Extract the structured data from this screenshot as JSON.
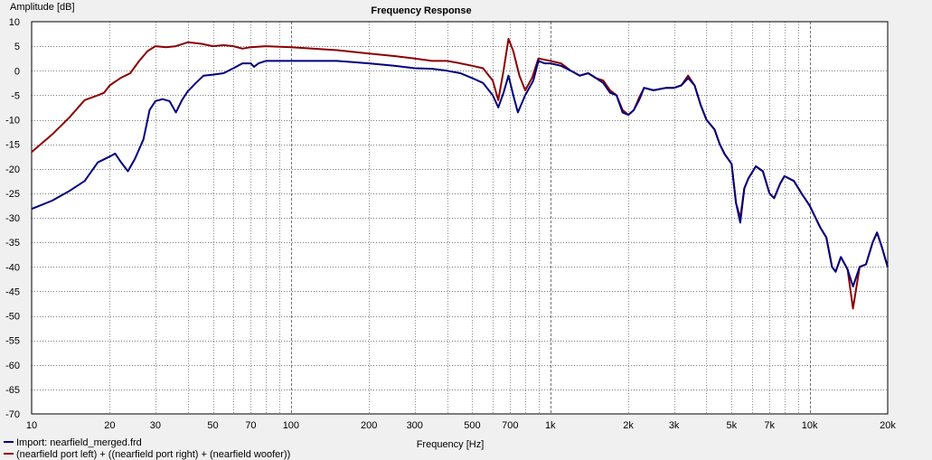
{
  "chart_data": {
    "type": "line",
    "title": "Frequency Response",
    "xlabel": "Frequency [Hz]",
    "ylabel": "Amplitude [dB]",
    "xscale": "log",
    "xlim": [
      10,
      20000
    ],
    "ylim": [
      -70,
      10
    ],
    "grid": true,
    "legend_position": "bottom-left",
    "x_ticks": [
      {
        "v": 10,
        "label": "10"
      },
      {
        "v": 20,
        "label": "20"
      },
      {
        "v": 30,
        "label": "30"
      },
      {
        "v": 50,
        "label": "50"
      },
      {
        "v": 70,
        "label": "70"
      },
      {
        "v": 100,
        "label": "100"
      },
      {
        "v": 200,
        "label": "200"
      },
      {
        "v": 300,
        "label": "300"
      },
      {
        "v": 500,
        "label": "500"
      },
      {
        "v": 700,
        "label": "700"
      },
      {
        "v": 1000,
        "label": "1k"
      },
      {
        "v": 2000,
        "label": "2k"
      },
      {
        "v": 3000,
        "label": "3k"
      },
      {
        "v": 5000,
        "label": "5k"
      },
      {
        "v": 7000,
        "label": "7k"
      },
      {
        "v": 10000,
        "label": "10k"
      },
      {
        "v": 20000,
        "label": "20k"
      }
    ],
    "y_ticks": [
      10,
      5,
      0,
      -5,
      -10,
      -15,
      -20,
      -25,
      -30,
      -35,
      -40,
      -45,
      -50,
      -55,
      -60,
      -65,
      -70
    ],
    "series": [
      {
        "name": "Import: nearfield_merged.frd",
        "color": "#000080",
        "points": [
          [
            10,
            -28.2
          ],
          [
            12,
            -26.5
          ],
          [
            14,
            -24.5
          ],
          [
            16,
            -22.5
          ],
          [
            18,
            -18.7
          ],
          [
            20,
            -17.5
          ],
          [
            21,
            -16.9
          ],
          [
            22,
            -18.5
          ],
          [
            23.5,
            -20.5
          ],
          [
            25,
            -18
          ],
          [
            27,
            -14
          ],
          [
            28.5,
            -8
          ],
          [
            30,
            -6.2
          ],
          [
            32,
            -5.8
          ],
          [
            34,
            -6.2
          ],
          [
            36,
            -8.5
          ],
          [
            38,
            -6
          ],
          [
            40,
            -4.2
          ],
          [
            43,
            -2.5
          ],
          [
            46,
            -1
          ],
          [
            50,
            -0.8
          ],
          [
            55,
            -0.5
          ],
          [
            60,
            0.5
          ],
          [
            65,
            1.5
          ],
          [
            70,
            1.5
          ],
          [
            72,
            0.8
          ],
          [
            75,
            1.5
          ],
          [
            80,
            2
          ],
          [
            90,
            2
          ],
          [
            100,
            2
          ],
          [
            150,
            2
          ],
          [
            200,
            1.5
          ],
          [
            250,
            1
          ],
          [
            300,
            0.5
          ],
          [
            350,
            0.4
          ],
          [
            400,
            0
          ],
          [
            450,
            -0.5
          ],
          [
            500,
            -1.5
          ],
          [
            550,
            -2.5
          ],
          [
            600,
            -5
          ],
          [
            630,
            -7.5
          ],
          [
            660,
            -4.5
          ],
          [
            690,
            -1
          ],
          [
            720,
            -5
          ],
          [
            750,
            -8.5
          ],
          [
            800,
            -5
          ],
          [
            860,
            -2
          ],
          [
            900,
            2
          ],
          [
            950,
            1.5
          ],
          [
            1000,
            1.5
          ],
          [
            1100,
            1
          ],
          [
            1200,
            0
          ],
          [
            1300,
            -1
          ],
          [
            1400,
            -0.5
          ],
          [
            1500,
            -1.5
          ],
          [
            1600,
            -2.5
          ],
          [
            1700,
            -4.5
          ],
          [
            1800,
            -5
          ],
          [
            1900,
            -8.5
          ],
          [
            2000,
            -9
          ],
          [
            2100,
            -8
          ],
          [
            2200,
            -6
          ],
          [
            2300,
            -3.5
          ],
          [
            2500,
            -4
          ],
          [
            2800,
            -3.5
          ],
          [
            3000,
            -3.5
          ],
          [
            3200,
            -3
          ],
          [
            3400,
            -1.5
          ],
          [
            3600,
            -3
          ],
          [
            3800,
            -7
          ],
          [
            4000,
            -10
          ],
          [
            4300,
            -12
          ],
          [
            4500,
            -15
          ],
          [
            4700,
            -17
          ],
          [
            5000,
            -19
          ],
          [
            5200,
            -27
          ],
          [
            5400,
            -31
          ],
          [
            5600,
            -24
          ],
          [
            5800,
            -22
          ],
          [
            6200,
            -19.5
          ],
          [
            6600,
            -20.5
          ],
          [
            7000,
            -25
          ],
          [
            7300,
            -26
          ],
          [
            7700,
            -23
          ],
          [
            8000,
            -21.5
          ],
          [
            8700,
            -22.5
          ],
          [
            9300,
            -25
          ],
          [
            10000,
            -27.5
          ],
          [
            11000,
            -32
          ],
          [
            11600,
            -34
          ],
          [
            12200,
            -40
          ],
          [
            12600,
            -41
          ],
          [
            13200,
            -38
          ],
          [
            14000,
            -40.5
          ],
          [
            14700,
            -44
          ],
          [
            15600,
            -40
          ],
          [
            16500,
            -39.5
          ],
          [
            17500,
            -35
          ],
          [
            18200,
            -33
          ],
          [
            19000,
            -36
          ],
          [
            19600,
            -38.5
          ],
          [
            20000,
            -40
          ]
        ]
      },
      {
        "name": "(nearfield port left) + ((nearfield port right) + (nearfield woofer))",
        "color": "#8b0000",
        "points": [
          [
            10,
            -16.6
          ],
          [
            12,
            -13
          ],
          [
            14,
            -9.5
          ],
          [
            16,
            -6
          ],
          [
            18,
            -5
          ],
          [
            19,
            -4.5
          ],
          [
            20,
            -3
          ],
          [
            22,
            -1.5
          ],
          [
            24,
            -0.5
          ],
          [
            26,
            2
          ],
          [
            28,
            4
          ],
          [
            30,
            5
          ],
          [
            33,
            4.8
          ],
          [
            36,
            5
          ],
          [
            40,
            5.8
          ],
          [
            45,
            5.5
          ],
          [
            50,
            5
          ],
          [
            55,
            5.2
          ],
          [
            60,
            5
          ],
          [
            65,
            4.5
          ],
          [
            70,
            4.8
          ],
          [
            80,
            5
          ],
          [
            100,
            4.8
          ],
          [
            150,
            4.2
          ],
          [
            200,
            3.5
          ],
          [
            250,
            3
          ],
          [
            300,
            2.5
          ],
          [
            350,
            2
          ],
          [
            400,
            2
          ],
          [
            450,
            1.5
          ],
          [
            500,
            1
          ],
          [
            550,
            0.5
          ],
          [
            600,
            -2
          ],
          [
            630,
            -6
          ],
          [
            660,
            0
          ],
          [
            690,
            6.5
          ],
          [
            720,
            4
          ],
          [
            760,
            -1
          ],
          [
            800,
            -4
          ],
          [
            850,
            -1.5
          ],
          [
            900,
            2.5
          ],
          [
            1000,
            2
          ],
          [
            1100,
            1.5
          ],
          [
            1200,
            0
          ],
          [
            1300,
            -1
          ],
          [
            1400,
            -0.5
          ],
          [
            1500,
            -1.5
          ],
          [
            1600,
            -2
          ],
          [
            1700,
            -4
          ],
          [
            1800,
            -5
          ],
          [
            1900,
            -8
          ],
          [
            2000,
            -9
          ],
          [
            2100,
            -8
          ],
          [
            2200,
            -5.5
          ],
          [
            2300,
            -3.5
          ],
          [
            2500,
            -4
          ],
          [
            2800,
            -3.5
          ],
          [
            3000,
            -3.5
          ],
          [
            3200,
            -3
          ],
          [
            3400,
            -1
          ],
          [
            3600,
            -3
          ],
          [
            3800,
            -7
          ],
          [
            4000,
            -10
          ],
          [
            4300,
            -12
          ],
          [
            4500,
            -15
          ],
          [
            4700,
            -17
          ],
          [
            5000,
            -19
          ],
          [
            5200,
            -27
          ],
          [
            5400,
            -30
          ],
          [
            5600,
            -24
          ],
          [
            5800,
            -22
          ],
          [
            6200,
            -19.5
          ],
          [
            6600,
            -20.5
          ],
          [
            7000,
            -25
          ],
          [
            7300,
            -26
          ],
          [
            7700,
            -23
          ],
          [
            8000,
            -21.5
          ],
          [
            8700,
            -22.5
          ],
          [
            9300,
            -25
          ],
          [
            10000,
            -27.5
          ],
          [
            11000,
            -32
          ],
          [
            11600,
            -34
          ],
          [
            12200,
            -40
          ],
          [
            12600,
            -41
          ],
          [
            13200,
            -38
          ],
          [
            14000,
            -40.5
          ],
          [
            14700,
            -48.5
          ],
          [
            15600,
            -40
          ],
          [
            16500,
            -39.5
          ],
          [
            17500,
            -35
          ],
          [
            18200,
            -33
          ],
          [
            19000,
            -36
          ],
          [
            19600,
            -38.5
          ],
          [
            20000,
            -40
          ]
        ]
      }
    ]
  }
}
